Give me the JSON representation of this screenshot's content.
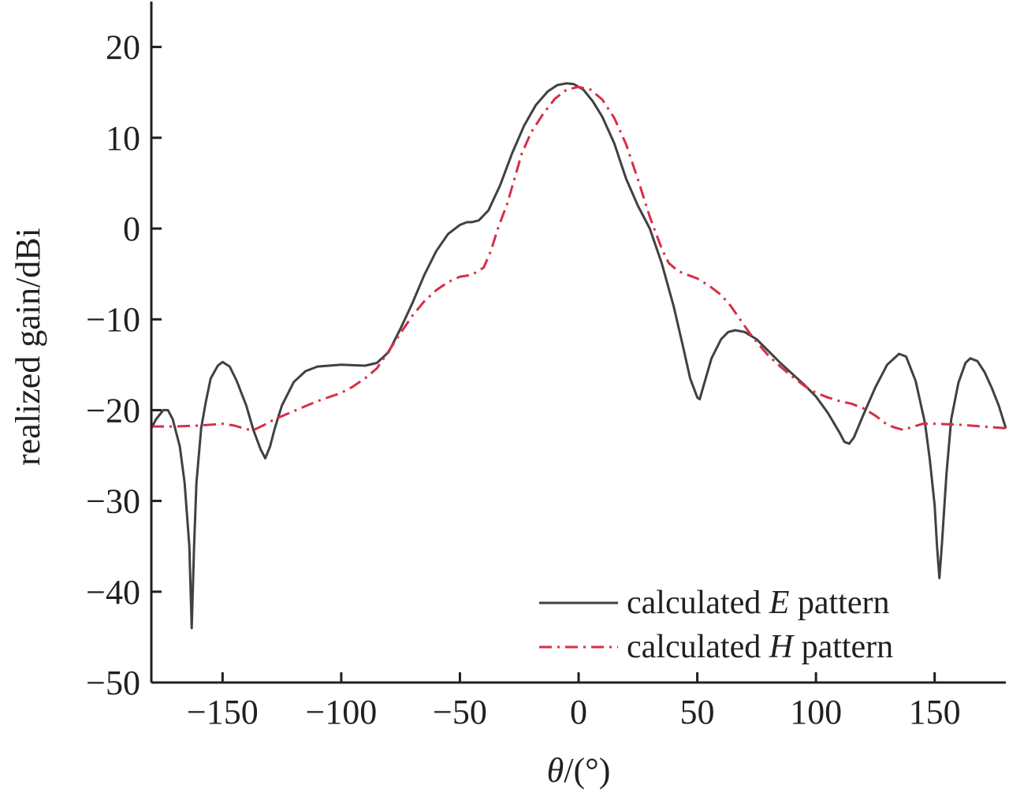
{
  "chart_data": {
    "type": "line",
    "xlabel": {
      "symbol": "θ",
      "unit": "/(°)"
    },
    "ylabel": "realized gain/dBi",
    "xlim": [
      -180,
      180
    ],
    "ylim": [
      -50,
      25
    ],
    "xticks": [
      -150,
      -100,
      -50,
      0,
      50,
      100,
      150
    ],
    "xtick_labels": [
      "−150",
      "−100",
      "−50",
      "0",
      "50",
      "100",
      "150"
    ],
    "yticks": [
      20,
      10,
      0,
      -10,
      -20,
      -30,
      -40,
      -50
    ],
    "ytick_labels": [
      "20",
      "10",
      "0",
      "−10",
      "−20",
      "−30",
      "−40",
      "−50"
    ],
    "grid": false,
    "legend_position": "bottom-right",
    "series": [
      {
        "name": "calculated E pattern",
        "legend_prefix": "calculated ",
        "legend_italic": "E",
        "legend_suffix": " pattern",
        "color": "#414042",
        "dash": "solid",
        "points": [
          [
            -180,
            -22
          ],
          [
            -178,
            -21
          ],
          [
            -175,
            -20
          ],
          [
            -173,
            -20
          ],
          [
            -171,
            -21
          ],
          [
            -168,
            -24
          ],
          [
            -166,
            -28
          ],
          [
            -164,
            -35
          ],
          [
            -163,
            -44
          ],
          [
            -162,
            -35
          ],
          [
            -161,
            -28
          ],
          [
            -159,
            -22
          ],
          [
            -157,
            -19
          ],
          [
            -155,
            -16.5
          ],
          [
            -152,
            -15.1
          ],
          [
            -150,
            -14.7
          ],
          [
            -147,
            -15.2
          ],
          [
            -144,
            -16.8
          ],
          [
            -140,
            -19.5
          ],
          [
            -137,
            -22.2
          ],
          [
            -134,
            -24.3
          ],
          [
            -132,
            -25.3
          ],
          [
            -130,
            -24
          ],
          [
            -128,
            -22
          ],
          [
            -125,
            -19.5
          ],
          [
            -120,
            -16.9
          ],
          [
            -115,
            -15.7
          ],
          [
            -110,
            -15.2
          ],
          [
            -100,
            -15
          ],
          [
            -90,
            -15.1
          ],
          [
            -85,
            -14.8
          ],
          [
            -80,
            -13.6
          ],
          [
            -75,
            -11
          ],
          [
            -70,
            -8.2
          ],
          [
            -65,
            -5.1
          ],
          [
            -60,
            -2.5
          ],
          [
            -55,
            -0.6
          ],
          [
            -50,
            0.4
          ],
          [
            -47,
            0.7
          ],
          [
            -45,
            0.7
          ],
          [
            -42,
            0.9
          ],
          [
            -38,
            2
          ],
          [
            -33,
            4.8
          ],
          [
            -28,
            8.3
          ],
          [
            -23,
            11.3
          ],
          [
            -18,
            13.6
          ],
          [
            -13,
            15.1
          ],
          [
            -9,
            15.8
          ],
          [
            -5,
            16
          ],
          [
            -2,
            15.9
          ],
          [
            2,
            15.3
          ],
          [
            6,
            14
          ],
          [
            10,
            12.3
          ],
          [
            15,
            9.4
          ],
          [
            20,
            5.5
          ],
          [
            25,
            2.5
          ],
          [
            30,
            0
          ],
          [
            35,
            -3.8
          ],
          [
            40,
            -8.5
          ],
          [
            44,
            -13
          ],
          [
            47,
            -16.5
          ],
          [
            50,
            -18.6
          ],
          [
            51,
            -18.8
          ],
          [
            53,
            -17
          ],
          [
            56,
            -14.3
          ],
          [
            60,
            -12.2
          ],
          [
            63,
            -11.4
          ],
          [
            66,
            -11.2
          ],
          [
            70,
            -11.4
          ],
          [
            75,
            -12.2
          ],
          [
            80,
            -13.5
          ],
          [
            85,
            -14.8
          ],
          [
            90,
            -16
          ],
          [
            95,
            -17.2
          ],
          [
            100,
            -18.5
          ],
          [
            105,
            -20.3
          ],
          [
            110,
            -22.5
          ],
          [
            112,
            -23.5
          ],
          [
            114,
            -23.7
          ],
          [
            116,
            -23
          ],
          [
            120,
            -20.5
          ],
          [
            125,
            -17.5
          ],
          [
            130,
            -15
          ],
          [
            135,
            -13.8
          ],
          [
            138,
            -14.1
          ],
          [
            142,
            -16.8
          ],
          [
            146,
            -21.5
          ],
          [
            148,
            -25.5
          ],
          [
            150,
            -30.5
          ],
          [
            151,
            -35
          ],
          [
            152,
            -38.5
          ],
          [
            153,
            -35
          ],
          [
            155,
            -27
          ],
          [
            157,
            -21
          ],
          [
            160,
            -17
          ],
          [
            163,
            -14.8
          ],
          [
            165,
            -14.3
          ],
          [
            168,
            -14.6
          ],
          [
            171,
            -15.8
          ],
          [
            174,
            -17.5
          ],
          [
            177,
            -19.5
          ],
          [
            180,
            -22
          ]
        ]
      },
      {
        "name": "calculated H pattern",
        "legend_prefix": "calculated ",
        "legend_italic": "H",
        "legend_suffix": " pattern",
        "color": "#d62f45",
        "dash": "dashdot",
        "points": [
          [
            -180,
            -21.8
          ],
          [
            -170,
            -21.8
          ],
          [
            -160,
            -21.7
          ],
          [
            -150,
            -21.5
          ],
          [
            -145,
            -21.7
          ],
          [
            -140,
            -22.1
          ],
          [
            -137,
            -22.2
          ],
          [
            -133,
            -21.7
          ],
          [
            -128,
            -21
          ],
          [
            -120,
            -20.1
          ],
          [
            -110,
            -19
          ],
          [
            -100,
            -18.1
          ],
          [
            -95,
            -17.4
          ],
          [
            -90,
            -16.5
          ],
          [
            -85,
            -15.4
          ],
          [
            -80,
            -13.5
          ],
          [
            -75,
            -11.5
          ],
          [
            -70,
            -9.6
          ],
          [
            -65,
            -8
          ],
          [
            -60,
            -6.8
          ],
          [
            -55,
            -5.9
          ],
          [
            -50,
            -5.3
          ],
          [
            -45,
            -5.1
          ],
          [
            -40,
            -4.3
          ],
          [
            -37,
            -2.5
          ],
          [
            -34,
            0
          ],
          [
            -30,
            2.8
          ],
          [
            -27,
            5.5
          ],
          [
            -24,
            8.2
          ],
          [
            -20,
            10.6
          ],
          [
            -15,
            12.6
          ],
          [
            -10,
            14.3
          ],
          [
            -5,
            15.3
          ],
          [
            0,
            15.6
          ],
          [
            5,
            15.3
          ],
          [
            10,
            14.2
          ],
          [
            15,
            12.2
          ],
          [
            20,
            9.3
          ],
          [
            25,
            5.4
          ],
          [
            30,
            1.3
          ],
          [
            35,
            -2.2
          ],
          [
            38,
            -3.8
          ],
          [
            42,
            -4.7
          ],
          [
            46,
            -5.1
          ],
          [
            50,
            -5.5
          ],
          [
            55,
            -6.3
          ],
          [
            60,
            -7.3
          ],
          [
            64,
            -8.5
          ],
          [
            68,
            -10
          ],
          [
            72,
            -11.5
          ],
          [
            76,
            -12.8
          ],
          [
            80,
            -14
          ],
          [
            85,
            -15.2
          ],
          [
            90,
            -16.3
          ],
          [
            95,
            -17.3
          ],
          [
            100,
            -18.1
          ],
          [
            105,
            -18.6
          ],
          [
            110,
            -19
          ],
          [
            115,
            -19.3
          ],
          [
            120,
            -19.8
          ],
          [
            125,
            -20.6
          ],
          [
            130,
            -21.6
          ],
          [
            133,
            -21.9
          ],
          [
            137,
            -22.2
          ],
          [
            140,
            -21.9
          ],
          [
            145,
            -21.5
          ],
          [
            150,
            -21.5
          ],
          [
            160,
            -21.6
          ],
          [
            170,
            -21.8
          ],
          [
            180,
            -22
          ]
        ]
      }
    ]
  }
}
